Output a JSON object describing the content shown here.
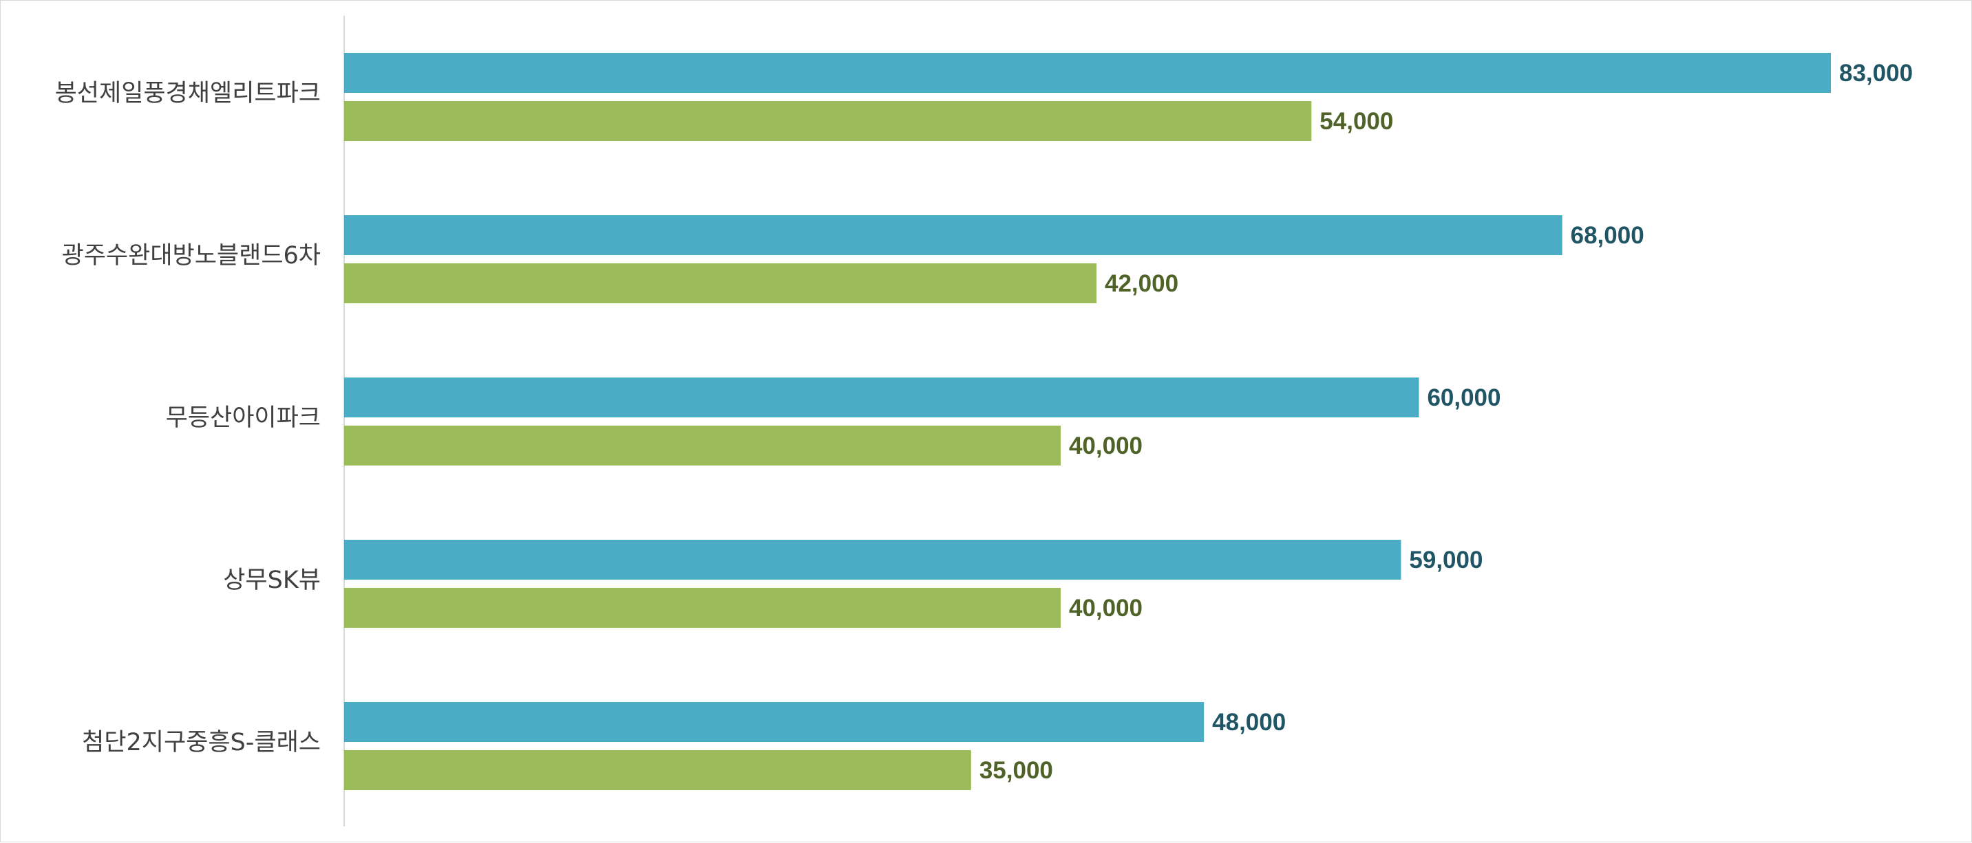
{
  "chart_data": {
    "type": "bar",
    "orientation": "horizontal",
    "title": "",
    "xlabel": "",
    "ylabel": "",
    "xlim": [
      0,
      90000
    ],
    "grid": false,
    "legend": "none",
    "categories": [
      "봉선제일풍경채엘리트파크",
      "광주수완대방노블랜드6차",
      "무등산아이파크",
      "상무SK뷰",
      "첨단2지구중흥S-클래스"
    ],
    "series": [
      {
        "color": "#4bacc6",
        "label_color": "#1f5564",
        "values": [
          83000,
          68000,
          60000,
          59000,
          48000
        ],
        "data_labels": [
          "83,000",
          "68,000",
          "60,000",
          "59,000",
          "48,000"
        ]
      },
      {
        "color": "#9bbb59",
        "label_color": "#4f6228",
        "values": [
          54000,
          42000,
          40000,
          40000,
          35000
        ],
        "data_labels": [
          "54,000",
          "42,000",
          "40,000",
          "40,000",
          "35,000"
        ]
      }
    ]
  }
}
